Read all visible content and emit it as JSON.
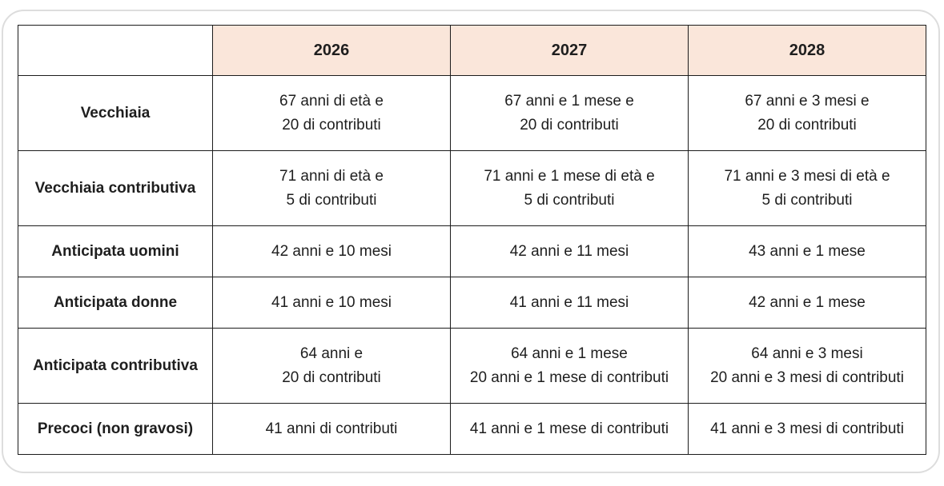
{
  "table": {
    "corner": "",
    "columns": [
      "2026",
      "2027",
      "2028"
    ],
    "rows": [
      {
        "label": "Vecchiaia",
        "cells": [
          [
            "67 anni di età e",
            "20 di contributi"
          ],
          [
            "67 anni e 1 mese e",
            "20 di contributi"
          ],
          [
            "67 anni e 3 mesi e",
            "20 di contributi"
          ]
        ]
      },
      {
        "label": "Vecchiaia contributiva",
        "cells": [
          [
            "71 anni di età e",
            "5 di contributi"
          ],
          [
            "71 anni e 1 mese di età e",
            "5 di contributi"
          ],
          [
            "71 anni e 3 mesi di età e",
            "5 di contributi"
          ]
        ]
      },
      {
        "label": "Anticipata uomini",
        "cells": [
          [
            "42 anni e 10 mesi"
          ],
          [
            "42 anni e 11 mesi"
          ],
          [
            "43 anni e 1 mese"
          ]
        ]
      },
      {
        "label": "Anticipata donne",
        "cells": [
          [
            "41 anni e 10 mesi"
          ],
          [
            "41 anni e 11 mesi"
          ],
          [
            "42 anni e 1 mese"
          ]
        ]
      },
      {
        "label": "Anticipata contributiva",
        "cells": [
          [
            "64 anni e",
            "20 di contributi"
          ],
          [
            "64 anni e 1 mese",
            "20 anni e 1 mese di contributi"
          ],
          [
            "64 anni e 3 mesi",
            "20 anni e 3 mesi di contributi"
          ]
        ]
      },
      {
        "label": "Precoci (non gravosi)",
        "cells": [
          [
            "41 anni di contributi"
          ],
          [
            "41 anni e 1 mese di contributi"
          ],
          [
            "41 anni e 3 mesi di contributi"
          ]
        ]
      }
    ]
  }
}
